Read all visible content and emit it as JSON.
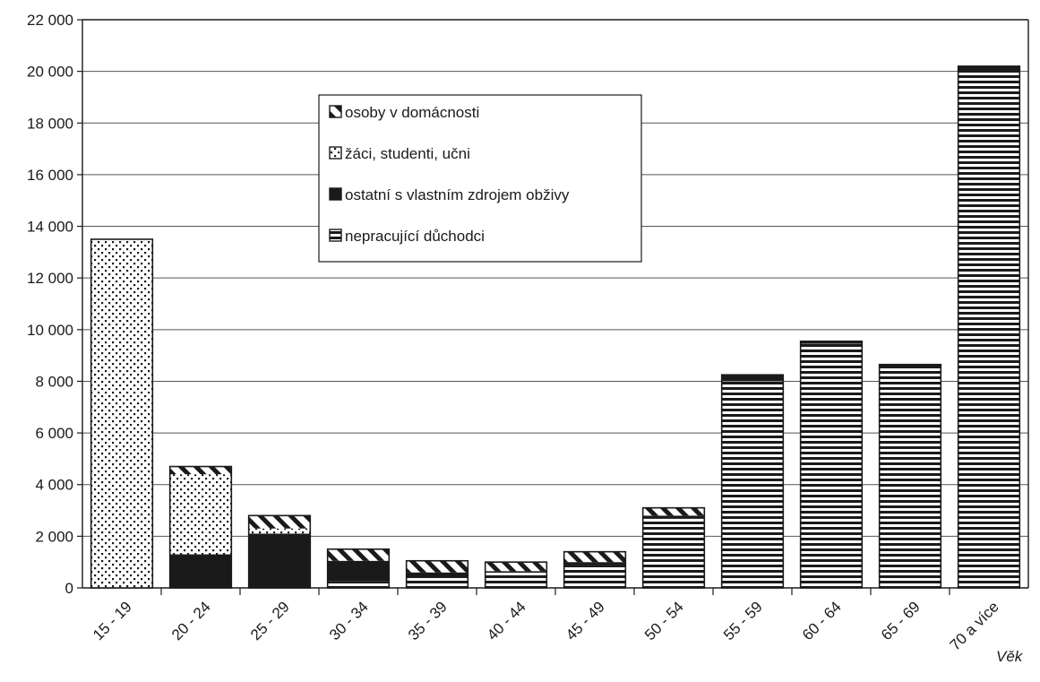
{
  "chart_data": {
    "type": "bar",
    "stacked": true,
    "categories": [
      "15 - 19",
      "20 - 24",
      "25 - 29",
      "30 - 34",
      "35 - 39",
      "40 - 44",
      "45 - 49",
      "50 - 54",
      "55 - 59",
      "60 - 64",
      "65 - 69",
      "70 a více"
    ],
    "series": [
      {
        "name": "nepracující důchodci",
        "pattern": "horizontal-stripes",
        "values": [
          0,
          0,
          0,
          250,
          400,
          650,
          900,
          2700,
          8000,
          9450,
          8500,
          20000
        ]
      },
      {
        "name": "ostatní s vlastním zdrojem obživy",
        "pattern": "solid",
        "values": [
          0,
          1300,
          2100,
          800,
          200,
          0,
          100,
          100,
          250,
          100,
          150,
          200
        ]
      },
      {
        "name": "žáci, studenti, učni",
        "pattern": "dots",
        "values": [
          13500,
          3100,
          200,
          0,
          0,
          0,
          0,
          0,
          0,
          0,
          0,
          0
        ]
      },
      {
        "name": "osoby v domácnosti",
        "pattern": "diagonal-stripes",
        "values": [
          0,
          300,
          500,
          450,
          450,
          350,
          400,
          300,
          0,
          0,
          0,
          0
        ]
      }
    ],
    "legend_order": [
      "osoby v domácnosti",
      "žáci, studenti, učni",
      "ostatní s vlastním zdrojem obživy",
      "nepracující důchodci"
    ],
    "y_ticks": [
      "0",
      "2 000",
      "4 000",
      "6 000",
      "8 000",
      "10 000",
      "12 000",
      "14 000",
      "16 000",
      "18 000",
      "20 000",
      "22 000"
    ],
    "ylim": [
      0,
      22000
    ],
    "xlabel": "Věk",
    "ylabel": "",
    "title": "",
    "grid": true,
    "legend_position": "top-center"
  },
  "colors": {
    "ink": "#1a1a1a",
    "background": "#ffffff",
    "grid": "#555555"
  }
}
